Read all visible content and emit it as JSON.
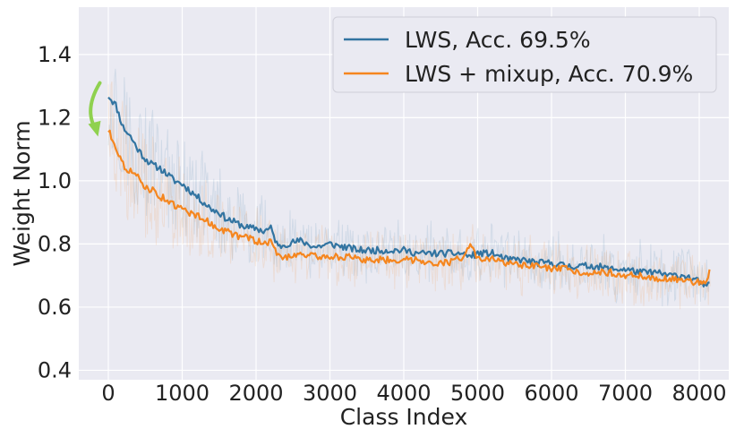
{
  "chart_data": {
    "type": "line",
    "title": "",
    "xlabel": "Class Index",
    "ylabel": "Weight Norm",
    "xlim": [
      -400,
      8400
    ],
    "ylim": [
      0.37,
      1.55
    ],
    "xticks": [
      0,
      1000,
      2000,
      3000,
      4000,
      5000,
      6000,
      7000,
      8000
    ],
    "yticks": [
      0.4,
      0.6,
      0.8,
      1.0,
      1.2,
      1.4
    ],
    "x_tick_labels": [
      "0",
      "1000",
      "2000",
      "3000",
      "4000",
      "5000",
      "6000",
      "7000",
      "8000"
    ],
    "y_tick_labels": [
      "0.4",
      "0.6",
      "0.8",
      "1.0",
      "1.2",
      "1.4"
    ],
    "grid": true,
    "legend_position": "top-right",
    "colors": {
      "background": "#eaeaf2",
      "grid": "#ffffff",
      "arrow": "#8fd14f"
    },
    "annotations": [
      {
        "type": "arrow",
        "direction": "down",
        "note": "curved arrow near x=-200"
      }
    ],
    "series": [
      {
        "name": "LWS, Acc. 69.5%",
        "color": "#3274a1",
        "x": [
          0,
          100,
          200,
          300,
          400,
          500,
          600,
          700,
          800,
          900,
          1000,
          1100,
          1200,
          1300,
          1400,
          1500,
          1600,
          1700,
          1800,
          1900,
          2000,
          2100,
          2200,
          2300,
          2400,
          2600,
          2800,
          3000,
          3200,
          3400,
          3600,
          3800,
          4000,
          4200,
          4400,
          4600,
          4800,
          4900,
          5000,
          5200,
          5400,
          5600,
          5800,
          6000,
          6200,
          6400,
          6600,
          6800,
          7000,
          7200,
          7400,
          7600,
          7800,
          8000,
          8100,
          8150
        ],
        "y": [
          1.27,
          1.24,
          1.17,
          1.14,
          1.1,
          1.07,
          1.05,
          1.04,
          1.02,
          1.0,
          0.99,
          0.97,
          0.95,
          0.93,
          0.91,
          0.9,
          0.88,
          0.87,
          0.86,
          0.85,
          0.85,
          0.84,
          0.85,
          0.79,
          0.8,
          0.81,
          0.79,
          0.8,
          0.79,
          0.78,
          0.78,
          0.78,
          0.78,
          0.77,
          0.77,
          0.77,
          0.77,
          0.76,
          0.77,
          0.77,
          0.75,
          0.75,
          0.74,
          0.74,
          0.73,
          0.73,
          0.73,
          0.72,
          0.72,
          0.71,
          0.71,
          0.7,
          0.7,
          0.68,
          0.66,
          0.68
        ]
      },
      {
        "name": "LWS + mixup, Acc. 70.9%",
        "color": "#f5861f",
        "x": [
          0,
          100,
          200,
          300,
          400,
          500,
          600,
          700,
          800,
          900,
          1000,
          1100,
          1200,
          1300,
          1400,
          1500,
          1600,
          1700,
          1800,
          1900,
          2000,
          2100,
          2200,
          2300,
          2400,
          2600,
          2800,
          3000,
          3200,
          3400,
          3600,
          3800,
          4000,
          4200,
          4400,
          4600,
          4800,
          4900,
          5000,
          5200,
          5400,
          5600,
          5800,
          6000,
          6200,
          6400,
          6600,
          6800,
          7000,
          7200,
          7400,
          7600,
          7800,
          8000,
          8100,
          8150
        ],
        "y": [
          1.16,
          1.11,
          1.05,
          1.03,
          1.01,
          0.98,
          0.97,
          0.95,
          0.94,
          0.92,
          0.91,
          0.9,
          0.89,
          0.88,
          0.86,
          0.85,
          0.84,
          0.83,
          0.82,
          0.82,
          0.81,
          0.8,
          0.81,
          0.76,
          0.76,
          0.77,
          0.76,
          0.76,
          0.76,
          0.75,
          0.75,
          0.75,
          0.75,
          0.75,
          0.74,
          0.74,
          0.76,
          0.8,
          0.75,
          0.75,
          0.74,
          0.73,
          0.73,
          0.72,
          0.72,
          0.71,
          0.71,
          0.71,
          0.7,
          0.7,
          0.69,
          0.69,
          0.68,
          0.68,
          0.68,
          0.73
        ]
      }
    ]
  }
}
